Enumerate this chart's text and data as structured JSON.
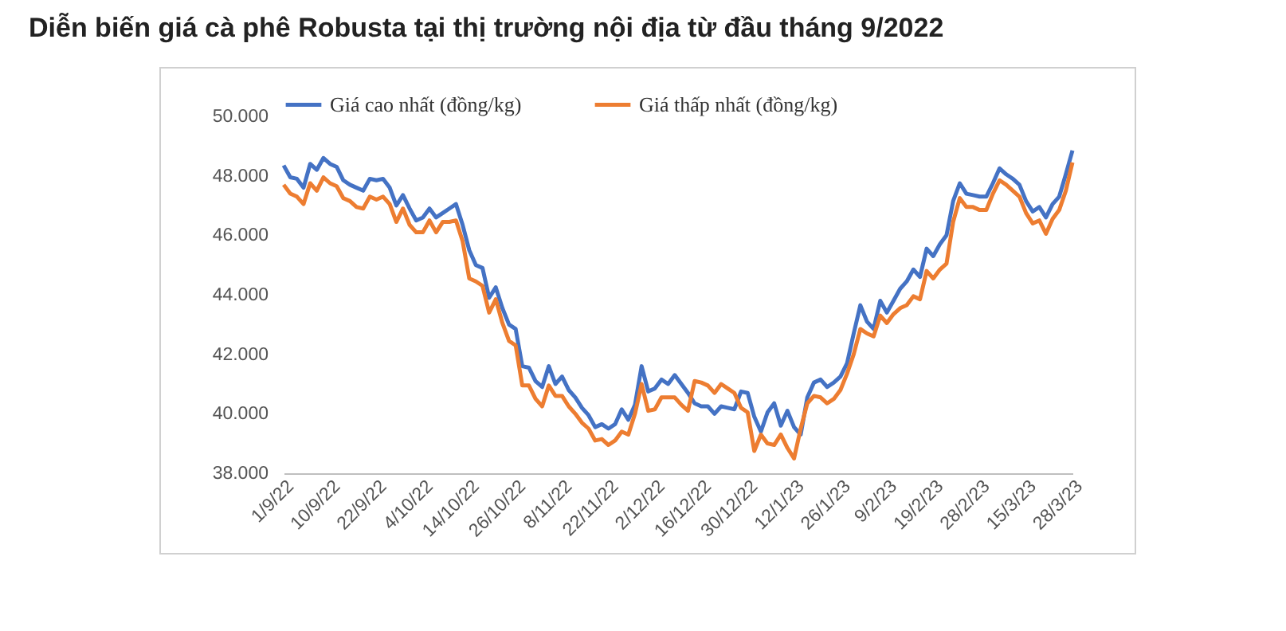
{
  "chart_data": {
    "type": "line",
    "title": "Diễn biến giá cà phê Robusta tại thị trường nội địa từ đầu tháng 9/2022",
    "categories": [
      "1/9/22",
      null,
      null,
      null,
      null,
      null,
      null,
      "10/9/22",
      null,
      null,
      null,
      null,
      null,
      null,
      "22/9/22",
      null,
      null,
      null,
      null,
      null,
      null,
      "4/10/22",
      null,
      null,
      null,
      null,
      null,
      null,
      "14/10/22",
      null,
      null,
      null,
      null,
      null,
      null,
      "26/10/22",
      null,
      null,
      null,
      null,
      null,
      null,
      "8/11/22",
      null,
      null,
      null,
      null,
      null,
      null,
      "22/11/22",
      null,
      null,
      null,
      null,
      null,
      null,
      "2/12/22",
      null,
      null,
      null,
      null,
      null,
      null,
      "16/12/22",
      null,
      null,
      null,
      null,
      null,
      null,
      "30/12/22",
      null,
      null,
      null,
      null,
      null,
      null,
      "12/1/23",
      null,
      null,
      null,
      null,
      null,
      null,
      "26/1/23",
      null,
      null,
      null,
      null,
      null,
      null,
      "9/2/23",
      null,
      null,
      null,
      null,
      null,
      null,
      "19/2/23",
      null,
      null,
      null,
      null,
      null,
      null,
      "28/2/23",
      null,
      null,
      null,
      null,
      null,
      null,
      "15/3/23",
      null,
      null,
      null,
      null,
      null,
      null,
      "28/3/23"
    ],
    "series": [
      {
        "name": "Giá cao nhất (đồng/kg)",
        "color": "#4472c4",
        "values": [
          48350,
          47950,
          47900,
          47600,
          48400,
          48200,
          48600,
          48400,
          48300,
          47850,
          47700,
          47600,
          47500,
          47900,
          47850,
          47900,
          47600,
          47000,
          47350,
          46900,
          46500,
          46600,
          46900,
          46600,
          46750,
          46900,
          47050,
          46350,
          45500,
          45000,
          44900,
          43900,
          44250,
          43550,
          43000,
          42850,
          41600,
          41550,
          41100,
          40900,
          41600,
          41000,
          41250,
          40800,
          40550,
          40200,
          39950,
          39550,
          39650,
          39500,
          39650,
          40150,
          39800,
          40300,
          41600,
          40750,
          40850,
          41150,
          41000,
          41300,
          41000,
          40700,
          40350,
          40250,
          40250,
          40000,
          40250,
          40200,
          40150,
          40750,
          40700,
          39900,
          39400,
          40050,
          40350,
          39600,
          40100,
          39550,
          39300,
          40550,
          41050,
          41150,
          40900,
          41050,
          41250,
          41700,
          42700,
          43650,
          43100,
          42850,
          43800,
          43400,
          43800,
          44200,
          44450,
          44850,
          44600,
          45550,
          45300,
          45700,
          46000,
          47150,
          47750,
          47400,
          47350,
          47300,
          47300,
          47750,
          48250,
          48050,
          47900,
          47700,
          47150,
          46800,
          46950,
          46600,
          47050,
          47300,
          48050,
          48850
        ]
      },
      {
        "name": "Giá thấp nhất (đồng/kg)",
        "color": "#ed7d31",
        "values": [
          47700,
          47400,
          47300,
          47050,
          47750,
          47500,
          47950,
          47750,
          47650,
          47250,
          47150,
          46950,
          46900,
          47300,
          47200,
          47300,
          47050,
          46450,
          46900,
          46350,
          46100,
          46100,
          46500,
          46100,
          46450,
          46450,
          46500,
          45800,
          44550,
          44450,
          44300,
          43400,
          43850,
          43050,
          42450,
          42300,
          40950,
          40950,
          40500,
          40250,
          40950,
          40600,
          40600,
          40250,
          40000,
          39700,
          39500,
          39100,
          39150,
          38950,
          39100,
          39400,
          39300,
          40000,
          41000,
          40100,
          40150,
          40550,
          40550,
          40550,
          40300,
          40100,
          41100,
          41050,
          40950,
          40700,
          41000,
          40850,
          40700,
          40200,
          40050,
          38750,
          39300,
          39000,
          38950,
          39300,
          38850,
          38500,
          39500,
          40350,
          40600,
          40550,
          40350,
          40500,
          40800,
          41350,
          42000,
          42850,
          42700,
          42600,
          43300,
          43050,
          43350,
          43550,
          43650,
          43950,
          43850,
          44800,
          44550,
          44850,
          45050,
          46450,
          47250,
          46950,
          46950,
          46850,
          46850,
          47400,
          47850,
          47700,
          47500,
          47300,
          46750,
          46400,
          46500,
          46050,
          46550,
          46850,
          47500,
          48450
        ]
      }
    ],
    "ylim": [
      38000,
      50000
    ],
    "yticks": [
      {
        "value": 38000,
        "label": "38.000"
      },
      {
        "value": 40000,
        "label": "40.000"
      },
      {
        "value": 42000,
        "label": "42.000"
      },
      {
        "value": 44000,
        "label": "44.000"
      },
      {
        "value": 46000,
        "label": "46.000"
      },
      {
        "value": 48000,
        "label": "48.000"
      },
      {
        "value": 50000,
        "label": "50.000"
      }
    ],
    "legend": "top",
    "marker": "none",
    "line_style": "solid"
  }
}
